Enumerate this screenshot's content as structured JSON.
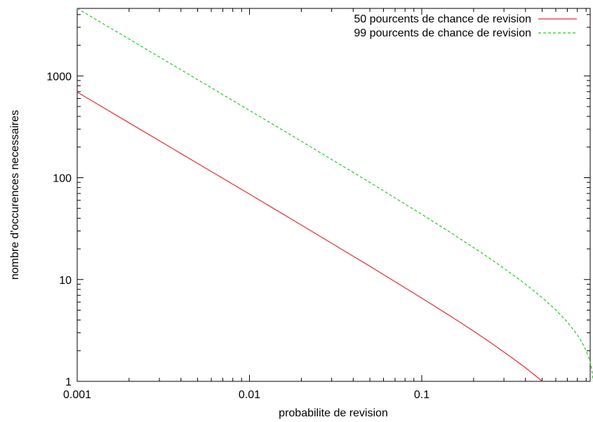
{
  "chart_data": {
    "type": "line",
    "title": "",
    "xlabel": "probabilite de revision",
    "ylabel": "nombre d'occurences necessaires",
    "xscale": "log",
    "yscale": "log",
    "xlim": [
      0.001,
      0.95
    ],
    "ylim": [
      1,
      4600
    ],
    "x_ticks": [
      0.001,
      0.01,
      0.1
    ],
    "x_tick_labels": [
      "0.001",
      "0.01",
      "0.1"
    ],
    "y_ticks": [
      1,
      10,
      100,
      1000
    ],
    "y_tick_labels": [
      "1",
      "10",
      "100",
      "1000"
    ],
    "grid": false,
    "legend_position": "top-right",
    "series": [
      {
        "name": "50 pourcents de chance de revision",
        "color": "#e03030",
        "dash": "solid",
        "x": [
          0.001,
          0.002,
          0.005,
          0.01,
          0.02,
          0.05,
          0.1,
          0.15,
          0.2,
          0.25,
          0.3,
          0.35,
          0.4,
          0.45,
          0.5
        ],
        "y": [
          692.8,
          346.2,
          138.3,
          69.0,
          34.3,
          13.5,
          6.58,
          4.27,
          3.11,
          2.41,
          1.94,
          1.61,
          1.36,
          1.16,
          1.0
        ]
      },
      {
        "name": "99 pourcents de chance de revision",
        "color": "#22cc22",
        "dash": "dashed",
        "x": [
          0.001,
          0.002,
          0.005,
          0.01,
          0.02,
          0.05,
          0.1,
          0.15,
          0.2,
          0.25,
          0.3,
          0.4,
          0.5,
          0.6,
          0.7,
          0.8,
          0.85,
          0.9,
          0.93,
          0.95,
          0.97,
          0.99
        ],
        "y": [
          4603,
          2300,
          918.7,
          458.2,
          228.0,
          89.8,
          43.7,
          28.3,
          20.6,
          16.0,
          12.9,
          9.01,
          6.64,
          5.03,
          3.83,
          2.86,
          2.43,
          2.0,
          1.73,
          1.54,
          1.31,
          1.0
        ]
      }
    ]
  }
}
